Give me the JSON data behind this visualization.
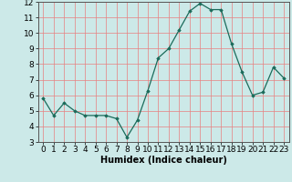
{
  "x": [
    0,
    1,
    2,
    3,
    4,
    5,
    6,
    7,
    8,
    9,
    10,
    11,
    12,
    13,
    14,
    15,
    16,
    17,
    18,
    19,
    20,
    21,
    22,
    23
  ],
  "y": [
    5.8,
    4.7,
    5.5,
    5.0,
    4.7,
    4.7,
    4.7,
    4.5,
    3.3,
    4.4,
    6.3,
    8.4,
    9.0,
    10.2,
    11.4,
    11.9,
    11.5,
    11.5,
    9.3,
    7.5,
    6.0,
    6.2,
    7.8,
    7.1
  ],
  "xlabel": "Humidex (Indice chaleur)",
  "ylim": [
    3,
    12
  ],
  "xlim_min": -0.5,
  "xlim_max": 23.5,
  "yticks": [
    3,
    4,
    5,
    6,
    7,
    8,
    9,
    10,
    11,
    12
  ],
  "xticks": [
    0,
    1,
    2,
    3,
    4,
    5,
    6,
    7,
    8,
    9,
    10,
    11,
    12,
    13,
    14,
    15,
    16,
    17,
    18,
    19,
    20,
    21,
    22,
    23
  ],
  "line_color": "#1a6b5a",
  "marker": "D",
  "marker_size": 1.8,
  "bg_color": "#cce9e8",
  "grid_color": "#e88080",
  "xlabel_fontsize": 7,
  "tick_fontsize": 6.5,
  "linewidth": 0.9
}
